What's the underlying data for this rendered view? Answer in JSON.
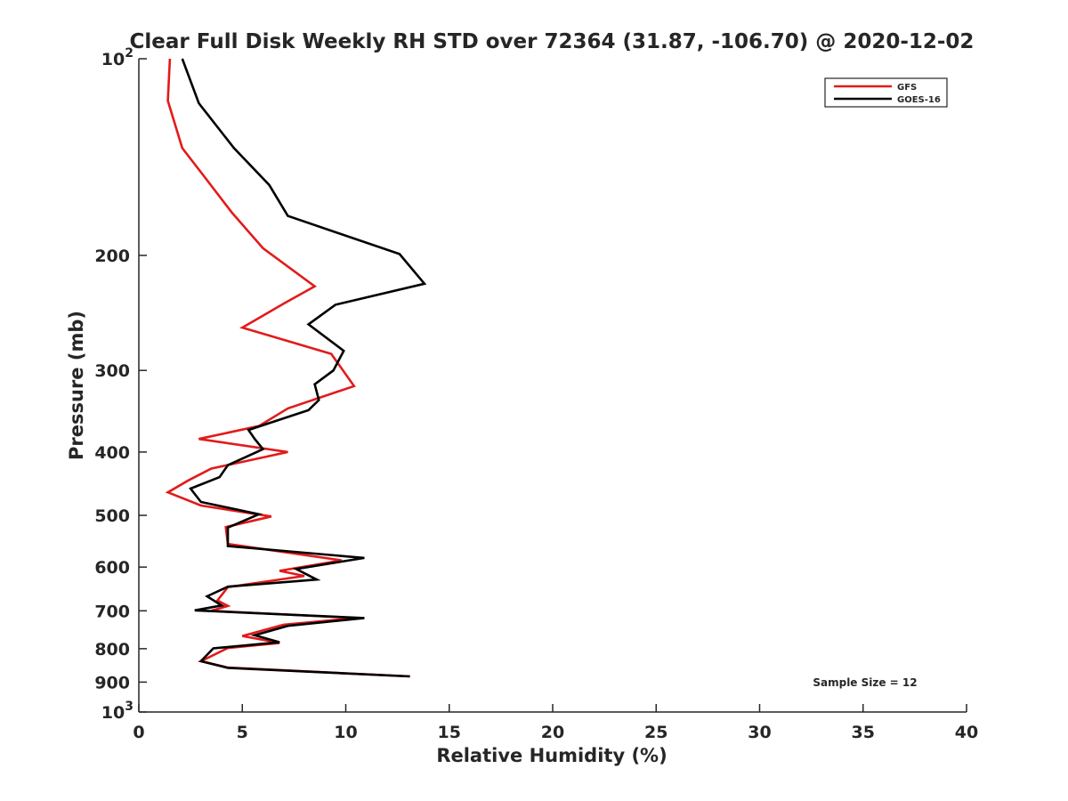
{
  "chart_data": {
    "type": "line",
    "title": "Clear Full Disk Weekly RH STD over 72364 (31.87, -106.70) @ 2020-12-02",
    "xlabel": "Relative Humidity (%)",
    "ylabel": "Pressure (mb)",
    "xlim": [
      0,
      40
    ],
    "ylim": [
      100,
      1000
    ],
    "y_scale": "log",
    "y_reversed": true,
    "xticks": [
      0,
      5,
      10,
      15,
      20,
      25,
      30,
      35,
      40
    ],
    "yticks": [
      {
        "value": 100,
        "label": "10",
        "sup": "2"
      },
      {
        "value": 200,
        "label": "200",
        "sup": ""
      },
      {
        "value": 300,
        "label": "300",
        "sup": ""
      },
      {
        "value": 400,
        "label": "400",
        "sup": ""
      },
      {
        "value": 500,
        "label": "500",
        "sup": ""
      },
      {
        "value": 600,
        "label": "600",
        "sup": ""
      },
      {
        "value": 700,
        "label": "700",
        "sup": ""
      },
      {
        "value": 800,
        "label": "800",
        "sup": ""
      },
      {
        "value": 900,
        "label": "900",
        "sup": ""
      },
      {
        "value": 1000,
        "label": "10",
        "sup": "3"
      }
    ],
    "grid": false,
    "legend_position": "top-right",
    "annotation": "Sample Size = 12",
    "series": [
      {
        "name": "GFS",
        "color": "#e31a1a",
        "x": [
          1.5,
          1.4,
          2.1,
          3.2,
          4.5,
          6.0,
          8.5,
          7.0,
          5.0,
          9.3,
          10.4,
          7.2,
          5.8,
          2.9,
          7.2,
          3.5,
          2.4,
          1.4,
          3.0,
          6.4,
          4.2,
          4.3,
          9.8,
          6.8,
          8.0,
          4.3,
          3.8,
          4.3,
          3.5,
          10.5,
          7.0,
          5.0,
          6.8,
          4.3,
          3.0,
          4.3,
          13.1
        ],
        "y": [
          100,
          116,
          137,
          152,
          172,
          195,
          223,
          237,
          258,
          283,
          317,
          343,
          365,
          382,
          400,
          424,
          442,
          461,
          483,
          502,
          521,
          553,
          586,
          608,
          619,
          644,
          675,
          688,
          700,
          718,
          735,
          765,
          784,
          798,
          836,
          855,
          882
        ]
      },
      {
        "name": "GOES-16",
        "color": "#000000",
        "x": [
          2.1,
          2.9,
          4.6,
          6.3,
          7.2,
          12.6,
          13.8,
          9.5,
          8.2,
          9.9,
          9.4,
          8.5,
          8.7,
          8.2,
          5.3,
          5.6,
          6.0,
          4.3,
          3.9,
          2.5,
          3.0,
          5.8,
          4.3,
          4.3,
          10.9,
          7.6,
          8.6,
          4.3,
          3.3,
          4.0,
          2.7,
          10.9,
          7.2,
          5.6,
          6.8,
          3.6,
          3.0,
          4.3,
          13.1
        ],
        "y": [
          100,
          117,
          137,
          156,
          174,
          199,
          221,
          238,
          255,
          280,
          300,
          315,
          333,
          345,
          370,
          382,
          396,
          419,
          437,
          455,
          477,
          498,
          522,
          557,
          581,
          604,
          627,
          643,
          665,
          687,
          699,
          718,
          738,
          763,
          782,
          799,
          836,
          856,
          882
        ]
      }
    ]
  }
}
